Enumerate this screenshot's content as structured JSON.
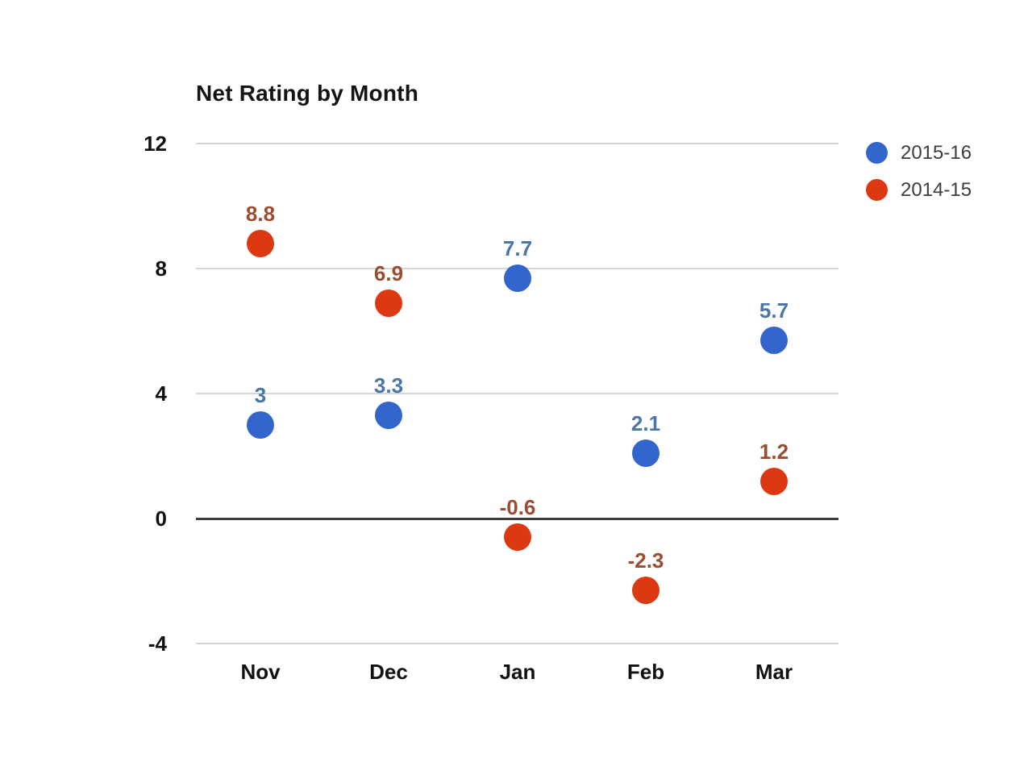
{
  "title": "Net Rating by Month",
  "chart_data": {
    "type": "scatter",
    "title": "Net Rating by Month",
    "categories": [
      "Nov",
      "Dec",
      "Jan",
      "Feb",
      "Mar"
    ],
    "series": [
      {
        "name": "2015-16",
        "color": "#3366cc",
        "label_color": "#4a76a8",
        "values": [
          3,
          3.3,
          7.7,
          2.1,
          5.7
        ],
        "labels": [
          "3",
          "3.3",
          "7.7",
          "2.1",
          "5.7"
        ]
      },
      {
        "name": "2014-15",
        "color": "#dc3912",
        "label_color": "#9a4d30",
        "values": [
          8.8,
          6.9,
          -0.6,
          -2.3,
          1.2
        ],
        "labels": [
          "8.8",
          "6.9",
          "-0.6",
          "-2.3",
          "1.2"
        ]
      }
    ],
    "xlabel": "",
    "ylabel": "",
    "ylim": [
      -4,
      12
    ],
    "yticks": [
      12,
      8,
      4,
      0,
      -4
    ],
    "grid": true,
    "zero_line_emphasized": true,
    "legend_position": "right"
  },
  "colors": {
    "background": "#ffffff",
    "gridline": "#d6d6d6",
    "zero_line": "#3c3c3c",
    "axis_text": "#111111",
    "legend_text": "#3d3d3d"
  }
}
